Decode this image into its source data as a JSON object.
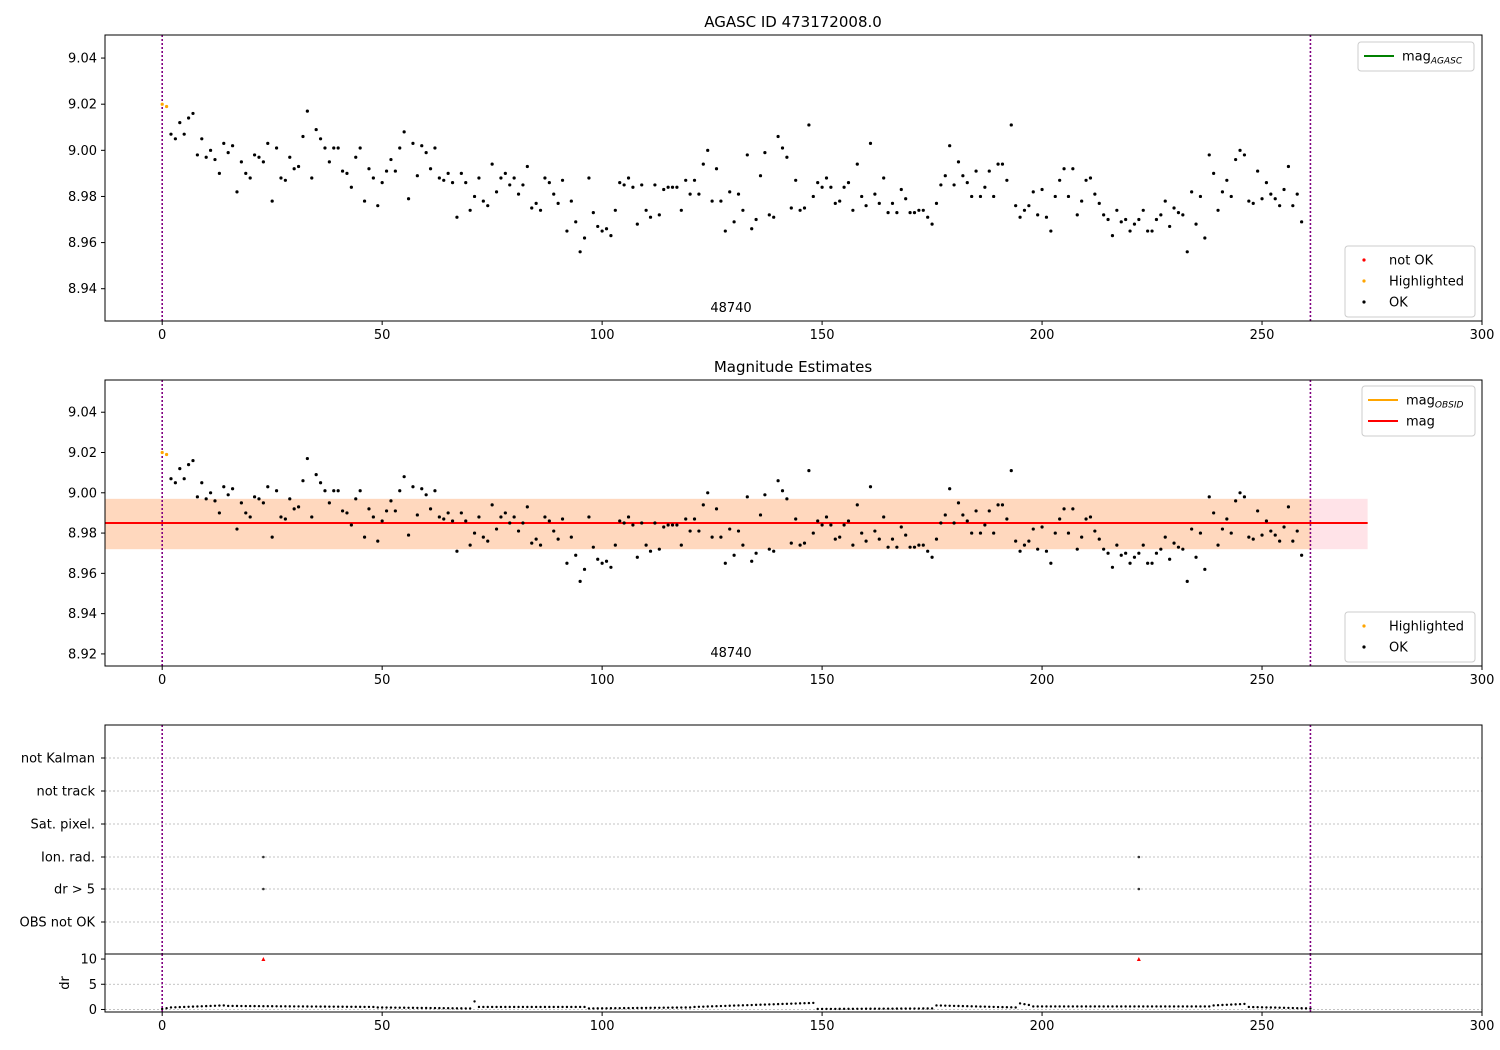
{
  "chart_data": [
    {
      "type": "scatter",
      "title": "AGASC ID 473172008.0",
      "annotation": "48740",
      "xlim": [
        -13,
        300
      ],
      "ylim": [
        8.926,
        9.05
      ],
      "xticks": [
        0,
        50,
        100,
        150,
        200,
        250,
        300
      ],
      "yticks": [
        8.94,
        8.96,
        8.98,
        9.0,
        9.02,
        9.04
      ],
      "ytick_labels": [
        "8.94",
        "8.96",
        "8.98",
        "9.00",
        "9.02",
        "9.04"
      ],
      "vlines": [
        0,
        261
      ],
      "legend_upper": [
        {
          "label": "mag",
          "sub": "AGASC",
          "color": "#008000",
          "kind": "line"
        }
      ],
      "legend_lower": [
        {
          "label": "not OK",
          "color": "#ff0000",
          "kind": "point"
        },
        {
          "label": "Highlighted",
          "color": "#ffa500",
          "kind": "point"
        },
        {
          "label": "OK",
          "color": "#000000",
          "kind": "point"
        }
      ],
      "highlighted": [
        [
          0,
          9.02
        ],
        [
          1,
          9.019
        ]
      ],
      "ok_magnitudes": [
        9.007,
        9.005,
        9.012,
        9.007,
        9.014,
        9.016,
        8.998,
        9.005,
        8.997,
        9.0,
        8.996,
        8.99,
        9.003,
        8.999,
        9.002,
        8.982,
        8.995,
        8.99,
        8.988,
        8.998,
        8.997,
        8.995,
        9.003,
        8.978,
        9.001,
        8.988,
        8.987,
        8.997,
        8.992,
        8.993,
        9.006,
        9.017,
        8.988,
        9.009,
        9.005,
        9.001,
        8.995,
        9.001,
        9.001,
        8.991,
        8.99,
        8.984,
        8.997,
        9.001,
        8.978,
        8.992,
        8.988,
        8.976,
        8.986,
        8.991,
        8.996,
        8.991,
        9.001,
        9.008,
        8.979,
        9.003,
        8.989,
        9.002,
        8.999,
        8.992,
        9.001,
        8.988,
        8.987,
        8.99,
        8.986,
        8.971,
        8.99,
        8.986,
        8.974,
        8.98,
        8.988,
        8.978,
        8.976,
        8.994,
        8.982,
        8.988,
        8.99,
        8.985,
        8.988,
        8.981,
        8.985,
        8.993,
        8.975,
        8.977,
        8.974,
        8.988,
        8.986,
        8.981,
        8.977,
        8.987,
        8.965,
        8.978,
        8.969,
        8.956,
        8.962,
        8.988,
        8.973,
        8.967,
        8.965,
        8.966,
        8.963,
        8.974,
        8.986,
        8.985,
        8.988,
        8.984,
        8.968,
        8.985,
        8.974,
        8.971,
        8.985,
        8.972,
        8.983,
        8.984,
        8.984,
        8.984,
        8.974,
        8.987,
        8.981,
        8.987,
        8.981,
        8.994,
        9.0,
        8.978,
        8.992,
        8.978,
        8.965,
        8.982,
        8.969,
        8.981,
        8.974,
        8.998,
        8.966,
        8.97,
        8.989,
        8.999,
        8.972,
        8.971,
        9.006,
        9.001,
        8.997,
        8.975,
        8.987,
        8.974,
        8.975,
        9.011,
        8.98,
        8.986,
        8.984,
        8.988,
        8.984,
        8.977,
        8.978,
        8.984,
        8.986,
        8.974,
        8.994,
        8.98,
        8.976,
        9.003,
        8.981,
        8.977,
        8.988,
        8.973,
        8.977,
        8.973,
        8.983,
        8.979,
        8.973,
        8.973,
        8.974,
        8.974,
        8.971,
        8.968,
        8.977,
        8.985,
        8.989,
        9.002,
        8.985,
        8.995,
        8.989,
        8.986,
        8.98,
        8.991,
        8.98,
        8.984,
        8.991,
        8.98,
        8.994,
        8.994,
        8.987,
        9.011,
        8.976,
        8.971,
        8.974,
        8.976,
        8.982,
        8.972,
        8.983,
        8.971,
        8.965,
        8.98,
        8.987,
        8.992,
        8.98,
        8.992,
        8.972,
        8.978,
        8.987,
        8.988,
        8.981,
        8.977,
        8.972,
        8.97,
        8.963,
        8.974,
        8.969,
        8.97,
        8.965,
        8.968,
        8.97,
        8.974,
        8.965,
        8.965,
        8.97,
        8.972,
        8.978,
        8.967,
        8.975,
        8.973,
        8.972,
        8.956,
        8.982,
        8.968,
        8.98,
        8.962,
        8.998,
        8.99,
        8.974,
        8.982,
        8.987,
        8.98,
        8.996,
        9.0,
        8.998,
        8.978,
        8.977,
        8.991,
        8.979,
        8.986,
        8.981,
        8.979,
        8.976,
        8.983,
        8.993,
        8.976,
        8.981,
        8.969
      ]
    },
    {
      "type": "scatter",
      "title": "Magnitude Estimates",
      "annotation": "48740",
      "xlim": [
        -13,
        300
      ],
      "ylim": [
        8.914,
        9.056
      ],
      "xticks": [
        0,
        50,
        100,
        150,
        200,
        250,
        300
      ],
      "yticks": [
        8.92,
        8.94,
        8.96,
        8.98,
        9.0,
        9.02,
        9.04
      ],
      "ytick_labels": [
        "8.92",
        "8.94",
        "8.96",
        "8.98",
        "9.00",
        "9.02",
        "9.04"
      ],
      "vlines": [
        0,
        261
      ],
      "mag_line": 8.985,
      "mag_band": [
        8.972,
        8.997
      ],
      "mag_band_xmax": 274,
      "obsid_band": [
        0,
        261
      ],
      "legend_upper": [
        {
          "label": "mag",
          "sub": "OBSID",
          "color": "#ffa500",
          "kind": "line"
        },
        {
          "label": "mag",
          "sub": "",
          "color": "#ff0000",
          "kind": "line"
        }
      ],
      "legend_lower": [
        {
          "label": "Highlighted",
          "color": "#ffa500",
          "kind": "point"
        },
        {
          "label": "OK",
          "color": "#000000",
          "kind": "point"
        }
      ]
    },
    {
      "type": "scatter",
      "title": "",
      "xlim": [
        -13,
        300
      ],
      "xticks": [
        0,
        50,
        100,
        150,
        200,
        250,
        300
      ],
      "vlines": [
        0,
        261
      ],
      "flag_labels": [
        "not Kalman",
        "not track",
        "Sat. pixel.",
        "Ion. rad.",
        "dr > 5",
        "OBS not OK"
      ],
      "flag_points": [
        {
          "flag": "Ion. rad.",
          "x": [
            23,
            222
          ]
        },
        {
          "flag": "dr > 5",
          "x": [
            23,
            222
          ]
        }
      ],
      "dr_ylabel": "dr",
      "dr_ylim": [
        -0.5,
        11
      ],
      "dr_yticks": [
        0,
        5,
        10
      ],
      "dr_outliers": [
        [
          23,
          10
        ],
        [
          222,
          10
        ]
      ],
      "dr_segments": [
        {
          "from": 0,
          "to": 1,
          "start": 0.1,
          "end": 0.25
        },
        {
          "from": 2,
          "to": 14,
          "start": 0.4,
          "end": 0.8
        },
        {
          "from": 15,
          "to": 48,
          "start": 0.7,
          "end": 0.5
        },
        {
          "from": 49,
          "to": 70,
          "start": 0.4,
          "end": 0.2
        },
        {
          "from": 71,
          "to": 71,
          "start": 1.6,
          "end": 1.6
        },
        {
          "from": 72,
          "to": 96,
          "start": 0.5,
          "end": 0.5
        },
        {
          "from": 97,
          "to": 120,
          "start": 0.2,
          "end": 0.4
        },
        {
          "from": 121,
          "to": 148,
          "start": 0.5,
          "end": 1.3
        },
        {
          "from": 149,
          "to": 175,
          "start": 0.1,
          "end": 0.2
        },
        {
          "from": 176,
          "to": 194,
          "start": 0.8,
          "end": 0.4
        },
        {
          "from": 195,
          "to": 197,
          "start": 1.2,
          "end": 0.9
        },
        {
          "from": 198,
          "to": 238,
          "start": 0.6,
          "end": 0.6
        },
        {
          "from": 239,
          "to": 246,
          "start": 0.8,
          "end": 1.1
        },
        {
          "from": 247,
          "to": 261,
          "start": 0.5,
          "end": 0.2
        }
      ]
    }
  ]
}
